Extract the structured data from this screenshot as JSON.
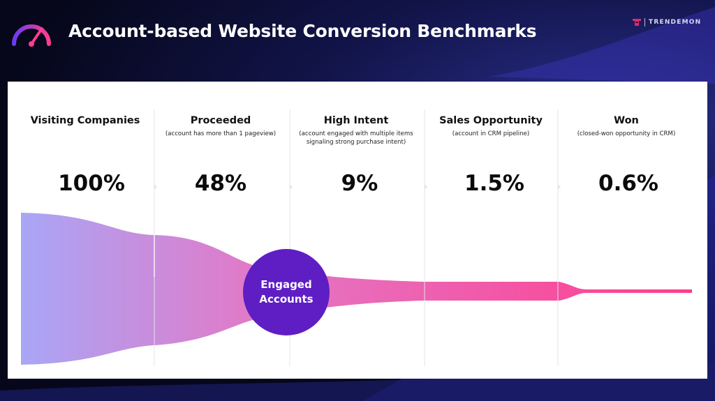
{
  "header": {
    "title": "Account-based Website Conversion Benchmarks",
    "brand_name": "TRENDEMON",
    "icon": "speedometer-icon",
    "brand_icon": "trendemon-logo-icon"
  },
  "colors": {
    "accent": "#5e1ec4",
    "funnel_start": "#a9a6f6",
    "funnel_end": "#ff3d8d",
    "brand": "#e0286f"
  },
  "badge": {
    "label": "Engaged\nAccounts"
  },
  "stages": [
    {
      "title": "Visiting Companies",
      "subtitle": "",
      "value": "100%"
    },
    {
      "title": "Proceeded",
      "subtitle": "(account has more than 1 pageview)",
      "value": "48%"
    },
    {
      "title": "High Intent",
      "subtitle": "(account engaged with multiple items signaling strong purchase intent)",
      "value": "9%"
    },
    {
      "title": "Sales Opportunity",
      "subtitle": "(account in CRM pipeline)",
      "value": "1.5%"
    },
    {
      "title": "Won",
      "subtitle": "(closed-won opportunity in CRM)",
      "value": "0.6%"
    }
  ],
  "chart_data": {
    "type": "area",
    "categories": [
      "Visiting Companies",
      "Proceeded",
      "High Intent",
      "Sales Opportunity",
      "Won"
    ],
    "values": [
      100,
      48,
      9,
      1.5,
      0.6
    ],
    "unit": "%"
  }
}
